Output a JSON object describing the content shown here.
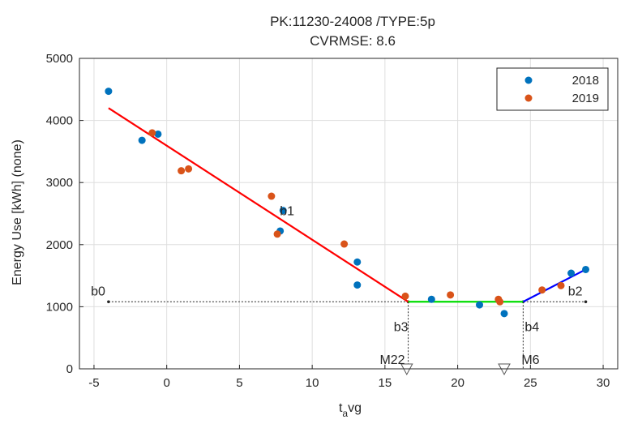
{
  "chart_data": {
    "type": "scatter",
    "title_lines": [
      "PK:11230-24008 /TYPE:5p",
      "CVRMSE: 8.6"
    ],
    "xlabel_main": "t",
    "xlabel_sub": "a",
    "xlabel_rest": "vg",
    "ylabel": "Energy Use [kWh] (none)",
    "xlim": [
      -6,
      31
    ],
    "ylim": [
      0,
      5000
    ],
    "xticks": [
      -5,
      0,
      5,
      10,
      15,
      20,
      25,
      30
    ],
    "yticks": [
      0,
      1000,
      2000,
      3000,
      4000,
      5000
    ],
    "grid": true,
    "legend_position": "top-right",
    "series": [
      {
        "name": "2018",
        "color": "#0072BD",
        "points": [
          [
            -4.0,
            4470
          ],
          [
            -1.7,
            3680
          ],
          [
            -0.6,
            3780
          ],
          [
            7.8,
            2220
          ],
          [
            8.0,
            2550
          ],
          [
            13.1,
            1720
          ],
          [
            13.1,
            1350
          ],
          [
            18.2,
            1120
          ],
          [
            21.5,
            1030
          ],
          [
            23.2,
            890
          ],
          [
            27.8,
            1540
          ],
          [
            28.8,
            1600
          ]
        ]
      },
      {
        "name": "2019",
        "color": "#D95319",
        "points": [
          [
            -1.0,
            3800
          ],
          [
            1.0,
            3190
          ],
          [
            1.5,
            3220
          ],
          [
            7.2,
            2780
          ],
          [
            7.6,
            2170
          ],
          [
            12.2,
            2010
          ],
          [
            16.4,
            1170
          ],
          [
            19.5,
            1190
          ],
          [
            22.8,
            1120
          ],
          [
            22.9,
            1080
          ],
          [
            25.8,
            1270
          ],
          [
            27.1,
            1340
          ]
        ]
      }
    ],
    "fit_segments": [
      {
        "color": "#FF0000",
        "from": [
          -4.0,
          4200
        ],
        "to": [
          16.6,
          1080
        ]
      },
      {
        "color": "#00DD00",
        "from": [
          16.6,
          1080
        ],
        "to": [
          24.5,
          1080
        ]
      },
      {
        "color": "#0000FF",
        "from": [
          24.5,
          1080
        ],
        "to": [
          28.8,
          1600
        ]
      }
    ],
    "baseline": {
      "from_x": -4.0,
      "to_x": 28.8,
      "y": 1080
    },
    "verticals": [
      {
        "x": 16.6,
        "from_y": 1080,
        "to_y": 0
      },
      {
        "x": 24.5,
        "from_y": 1080,
        "to_y": 0
      }
    ],
    "annotations": [
      {
        "text": "b0",
        "x": -4.0,
        "y": 1080,
        "anchor": "end",
        "dx": -4,
        "dy": -8
      },
      {
        "text": "b1",
        "x": 8.0,
        "y": 2550,
        "anchor": "start",
        "dx": -4,
        "dy": 6
      },
      {
        "text": "b2",
        "x": 28.8,
        "y": 1080,
        "anchor": "end",
        "dx": -4,
        "dy": -8
      },
      {
        "text": "b3",
        "x": 16.6,
        "y": 1080,
        "anchor": "end",
        "dx": 0,
        "dy": 36
      },
      {
        "text": "b4",
        "x": 24.5,
        "y": 1080,
        "anchor": "start",
        "dx": 2,
        "dy": 36
      },
      {
        "text": "M22",
        "x": 16.6,
        "y": 0,
        "anchor": "end",
        "dx": -4,
        "dy": -6
      },
      {
        "text": "M6",
        "x": 24.5,
        "y": 0,
        "anchor": "start",
        "dx": -2,
        "dy": -6
      }
    ],
    "markers": [
      {
        "x": 16.5,
        "y": 0
      },
      {
        "x": 23.2,
        "y": 0
      }
    ]
  }
}
